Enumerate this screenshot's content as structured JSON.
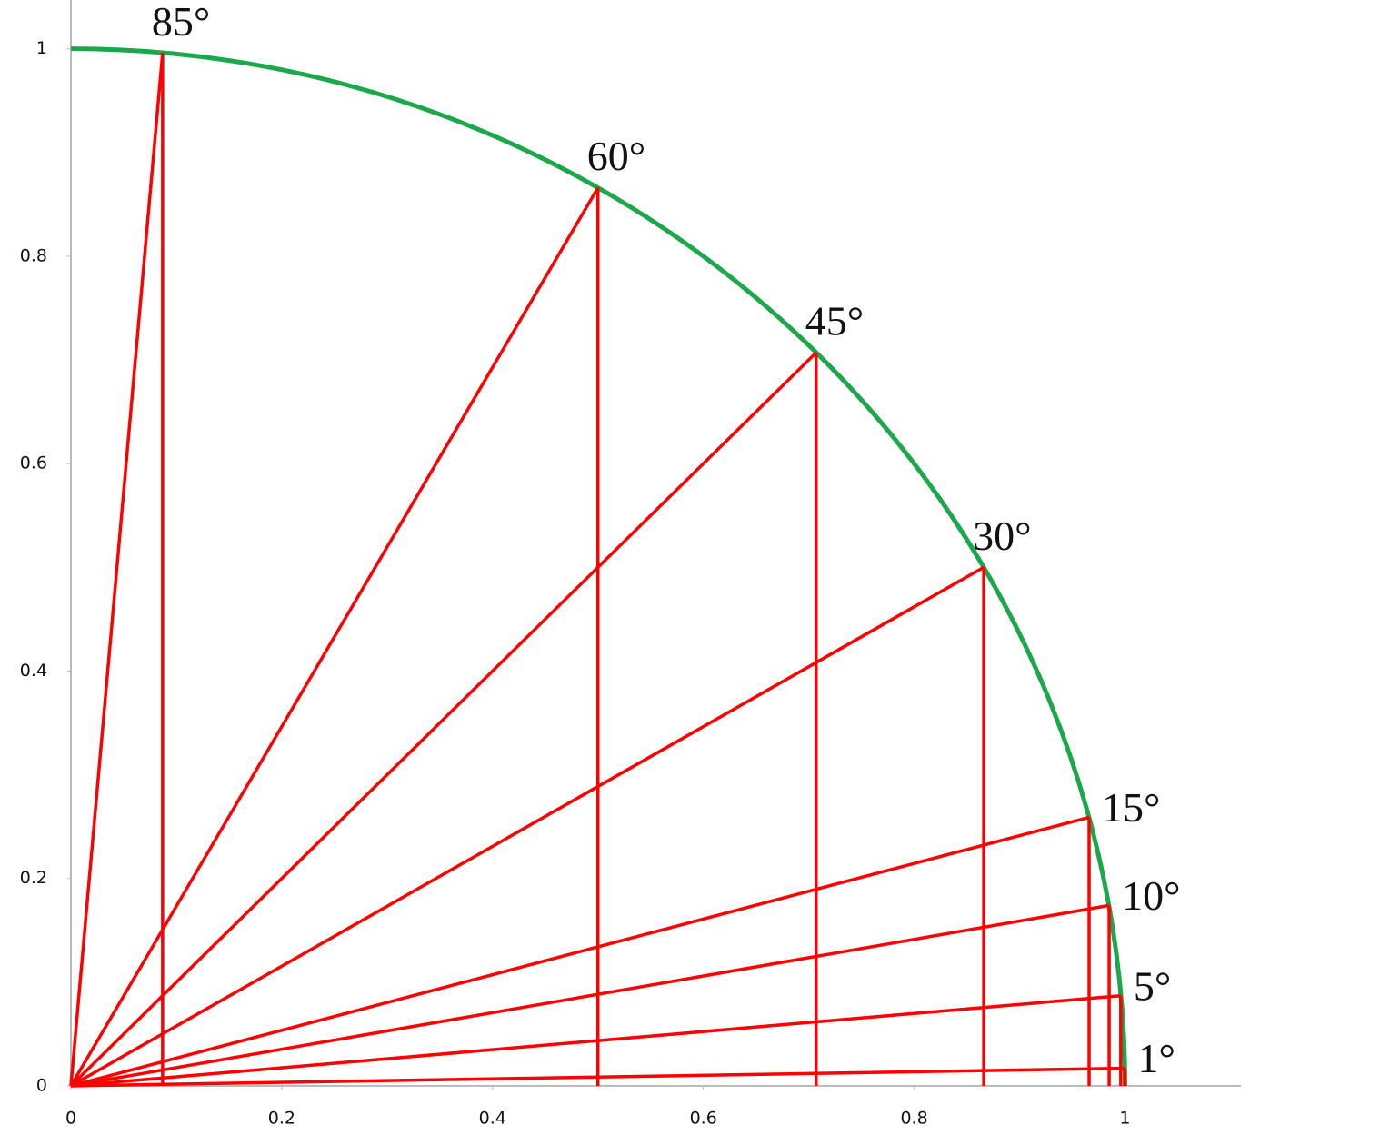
{
  "chart_data": {
    "type": "unit-circle",
    "radius": 1,
    "circle_color": "#1aa84a",
    "line_color": "#ff0000",
    "points": [
      {
        "label": "85°",
        "x": 0.087,
        "y": 0.996
      },
      {
        "label": "60°",
        "x": 0.5,
        "y": 0.866
      },
      {
        "label": "45°",
        "x": 0.707,
        "y": 0.707
      },
      {
        "label": "30°",
        "x": 0.866,
        "y": 0.5
      },
      {
        "label": "15°",
        "x": 0.966,
        "y": 0.259
      },
      {
        "label": "10°",
        "x": 0.985,
        "y": 0.174
      },
      {
        "label": "5°",
        "x": 0.996,
        "y": 0.087
      },
      {
        "label": "1°",
        "x": 1.0,
        "y": 0.017
      }
    ],
    "xlim": [
      0,
      1.11
    ],
    "ylim": [
      0,
      1.047
    ],
    "xticks": [
      0,
      0.2,
      0.4,
      0.6,
      0.8,
      1
    ],
    "yticks": [
      0,
      0.2,
      0.4,
      0.6,
      0.8,
      1
    ]
  }
}
